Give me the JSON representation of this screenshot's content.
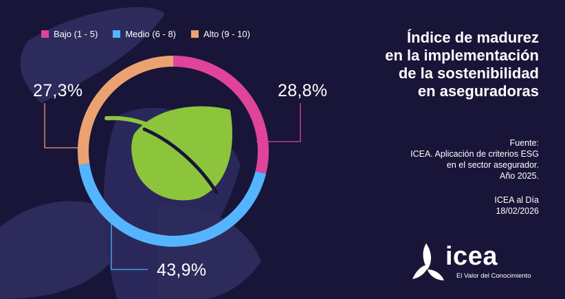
{
  "chart_data": {
    "type": "pie",
    "style": "donut",
    "categories": [
      "Bajo (1 - 5)",
      "Medio (6 - 8)",
      "Alto (9 - 10)"
    ],
    "values": [
      28.8,
      43.9,
      27.3
    ],
    "value_labels": [
      "28,8%",
      "43,9%",
      "27,3%"
    ],
    "colors": [
      "#e0449a",
      "#55b4ff",
      "#eba271"
    ],
    "legend_position": "top-left",
    "title_lines": [
      "Índice de madurez",
      "en la implementación",
      "de la sostenibilidad",
      "en aseguradoras"
    ]
  },
  "legend": {
    "items": [
      {
        "label": "Bajo (1 - 5)",
        "color": "#e0449a"
      },
      {
        "label": "Medio (6 - 8)",
        "color": "#55b4ff"
      },
      {
        "label": "Alto (9 - 10)",
        "color": "#eba271"
      }
    ]
  },
  "source": {
    "lines": [
      "Fuente:",
      "ICEA. Aplicación de criterios ESG",
      "en el sector asegurador.",
      "Año 2025."
    ]
  },
  "publication": {
    "lines": [
      "ICEA al Día",
      "18/02/2026"
    ]
  },
  "logo": {
    "word": "icea",
    "tagline": "El Valor del Conocimiento"
  },
  "colors": {
    "background": "#181538",
    "decor": "#2d2b5c",
    "leaf": "#8cc43c",
    "leaf_dark": "#5c8f22"
  },
  "icons": [
    "leaf-icon",
    "icea-logo-icon"
  ]
}
